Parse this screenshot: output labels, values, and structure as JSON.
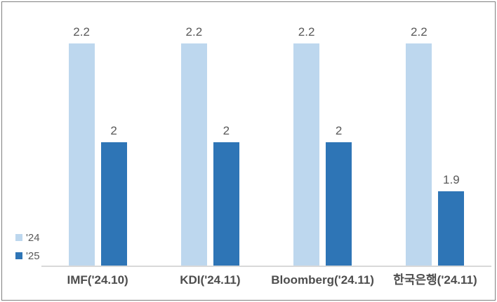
{
  "chart_data": {
    "type": "bar",
    "categories": [
      "IMF('24.10)",
      "KDI('24.11)",
      "Bloomberg('24.11)",
      "한국은행('24.11)"
    ],
    "series": [
      {
        "name": "'24",
        "color": "#BDD7EE",
        "values": [
          2.2,
          2.2,
          2.2,
          2.2
        ]
      },
      {
        "name": "'25",
        "color": "#2E75B6",
        "values": [
          2,
          2,
          2,
          1.9
        ]
      }
    ],
    "title": "",
    "xlabel": "",
    "ylabel": "",
    "ylim": [
      1.75,
      2.25
    ],
    "grid": false,
    "legend_position": "lower-left",
    "value_labels": true
  },
  "colors": {
    "background": "#FFFFFF",
    "border": "#7F7F7F",
    "axis_line": "#D9D9D9",
    "value_label_text": "#595959",
    "category_label_text": "#4D4D4D",
    "legend_text": "#595959"
  }
}
